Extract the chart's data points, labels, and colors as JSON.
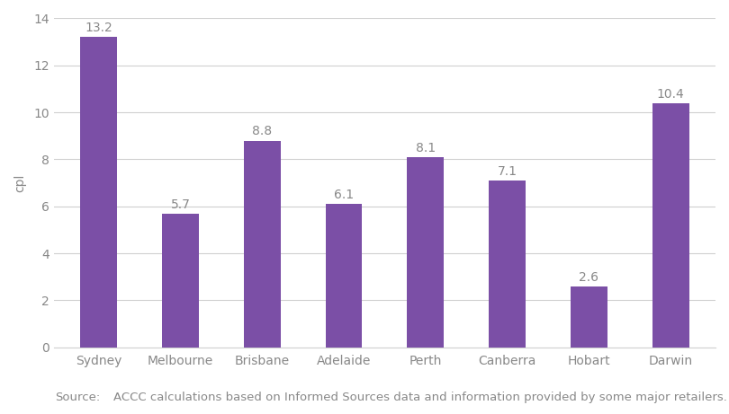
{
  "categories": [
    "Sydney",
    "Melbourne",
    "Brisbane",
    "Adelaide",
    "Perth",
    "Canberra",
    "Hobart",
    "Darwin"
  ],
  "values": [
    13.2,
    5.7,
    8.8,
    6.1,
    8.1,
    7.1,
    2.6,
    10.4
  ],
  "bar_color": "#7b4fa6",
  "ylabel": "cpl",
  "ylim": [
    0,
    14
  ],
  "yticks": [
    0,
    2,
    4,
    6,
    8,
    10,
    12,
    14
  ],
  "source_label": "Source:",
  "source_body": "ACCC calculations based on Informed Sources data and information provided by some major retailers.",
  "background_color": "#ffffff",
  "grid_color": "#d0d0d0",
  "tick_color": "#888888",
  "bar_label_color": "#888888",
  "bar_width": 0.45,
  "label_fontsize": 10,
  "tick_fontsize": 10,
  "source_fontsize": 9.5,
  "ylabel_fontsize": 10
}
